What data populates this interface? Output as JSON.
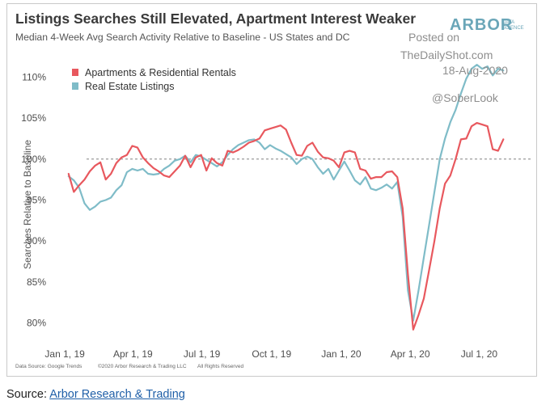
{
  "chart_data": {
    "type": "line",
    "title": "Listings Searches Still Elevated, Apartment Interest Weaker",
    "subtitle": "Median 4-Week Avg Search Activity Relative to Baseline - US States and DC",
    "ylabel": "Searches Relative to Baseline",
    "xlabel": "",
    "ylim": [
      78,
      112
    ],
    "yticks": [
      80,
      85,
      90,
      95,
      100,
      105,
      110
    ],
    "ytick_labels": [
      "80%",
      "85%",
      "90%",
      "95%",
      "100%",
      "105%",
      "110%"
    ],
    "xlim": [
      "2018-12-18",
      "2020-09-08"
    ],
    "xticks": [
      "2019-01-01",
      "2019-04-01",
      "2019-07-01",
      "2019-10-01",
      "2020-01-01",
      "2020-04-01",
      "2020-07-01"
    ],
    "xtick_labels": [
      "Jan 1, 19",
      "Apr 1, 19",
      "Jul 1, 19",
      "Oct 1, 19",
      "Jan 1, 20",
      "Apr 1, 20",
      "Jul 1, 20"
    ],
    "baseline": 100,
    "legend_position": "top-left",
    "series": [
      {
        "name": "Apartments & Residential Rentals",
        "color": "#e8585e",
        "points": [
          [
            "2019-01-06",
            98.2
          ],
          [
            "2019-01-13",
            96.0
          ],
          [
            "2019-01-20",
            96.8
          ],
          [
            "2019-01-27",
            97.5
          ],
          [
            "2019-02-03",
            98.5
          ],
          [
            "2019-02-10",
            99.2
          ],
          [
            "2019-02-17",
            99.6
          ],
          [
            "2019-02-24",
            97.5
          ],
          [
            "2019-03-03",
            98.2
          ],
          [
            "2019-03-10",
            99.5
          ],
          [
            "2019-03-17",
            100.2
          ],
          [
            "2019-03-24",
            100.5
          ],
          [
            "2019-03-31",
            101.6
          ],
          [
            "2019-04-07",
            101.4
          ],
          [
            "2019-04-14",
            100.2
          ],
          [
            "2019-04-21",
            99.5
          ],
          [
            "2019-04-28",
            98.9
          ],
          [
            "2019-05-05",
            98.5
          ],
          [
            "2019-05-12",
            98.0
          ],
          [
            "2019-05-19",
            97.8
          ],
          [
            "2019-05-26",
            98.5
          ],
          [
            "2019-06-02",
            99.2
          ],
          [
            "2019-06-09",
            100.4
          ],
          [
            "2019-06-16",
            99.0
          ],
          [
            "2019-06-23",
            100.2
          ],
          [
            "2019-06-30",
            100.5
          ],
          [
            "2019-07-07",
            98.6
          ],
          [
            "2019-07-14",
            100.1
          ],
          [
            "2019-07-21",
            99.5
          ],
          [
            "2019-07-28",
            99.2
          ],
          [
            "2019-08-04",
            101.0
          ],
          [
            "2019-08-11",
            100.8
          ],
          [
            "2019-08-18",
            101.1
          ],
          [
            "2019-08-25",
            101.5
          ],
          [
            "2019-09-01",
            102.0
          ],
          [
            "2019-09-08",
            102.2
          ],
          [
            "2019-09-15",
            102.5
          ],
          [
            "2019-09-22",
            103.5
          ],
          [
            "2019-09-29",
            103.7
          ],
          [
            "2019-10-06",
            103.9
          ],
          [
            "2019-10-13",
            104.1
          ],
          [
            "2019-10-20",
            103.6
          ],
          [
            "2019-10-27",
            102.0
          ],
          [
            "2019-11-03",
            100.5
          ],
          [
            "2019-11-10",
            100.4
          ],
          [
            "2019-11-17",
            101.6
          ],
          [
            "2019-11-24",
            102.0
          ],
          [
            "2019-12-01",
            100.9
          ],
          [
            "2019-12-08",
            100.2
          ],
          [
            "2019-12-15",
            100.1
          ],
          [
            "2019-12-22",
            99.8
          ],
          [
            "2019-12-29",
            99.0
          ],
          [
            "2020-01-05",
            100.8
          ],
          [
            "2020-01-12",
            101.0
          ],
          [
            "2020-01-19",
            100.8
          ],
          [
            "2020-01-26",
            98.8
          ],
          [
            "2020-02-02",
            98.6
          ],
          [
            "2020-02-09",
            97.6
          ],
          [
            "2020-02-16",
            97.8
          ],
          [
            "2020-02-23",
            97.8
          ],
          [
            "2020-03-01",
            98.4
          ],
          [
            "2020-03-08",
            98.5
          ],
          [
            "2020-03-15",
            97.8
          ],
          [
            "2020-03-22",
            94.0
          ],
          [
            "2020-03-29",
            86.0
          ],
          [
            "2020-04-05",
            79.2
          ],
          [
            "2020-04-12",
            81.0
          ],
          [
            "2020-04-19",
            83.0
          ],
          [
            "2020-04-26",
            86.5
          ],
          [
            "2020-05-03",
            90.0
          ],
          [
            "2020-05-10",
            94.0
          ],
          [
            "2020-05-17",
            97.0
          ],
          [
            "2020-05-24",
            98.0
          ],
          [
            "2020-05-31",
            100.0
          ],
          [
            "2020-06-07",
            102.4
          ],
          [
            "2020-06-14",
            102.5
          ],
          [
            "2020-06-21",
            104.0
          ],
          [
            "2020-06-28",
            104.4
          ],
          [
            "2020-07-05",
            104.2
          ],
          [
            "2020-07-12",
            104.0
          ],
          [
            "2020-07-19",
            101.2
          ],
          [
            "2020-07-26",
            101.0
          ],
          [
            "2020-08-02",
            102.4
          ]
        ]
      },
      {
        "name": "Real Estate Listings",
        "color": "#7fbcc8",
        "points": [
          [
            "2019-01-06",
            97.9
          ],
          [
            "2019-01-13",
            97.4
          ],
          [
            "2019-01-20",
            96.5
          ],
          [
            "2019-01-27",
            94.6
          ],
          [
            "2019-02-03",
            93.8
          ],
          [
            "2019-02-10",
            94.2
          ],
          [
            "2019-02-17",
            94.8
          ],
          [
            "2019-02-24",
            95.0
          ],
          [
            "2019-03-03",
            95.3
          ],
          [
            "2019-03-10",
            96.2
          ],
          [
            "2019-03-17",
            96.8
          ],
          [
            "2019-03-24",
            98.4
          ],
          [
            "2019-03-31",
            98.8
          ],
          [
            "2019-04-07",
            98.6
          ],
          [
            "2019-04-14",
            98.8
          ],
          [
            "2019-04-21",
            98.2
          ],
          [
            "2019-04-28",
            98.1
          ],
          [
            "2019-05-05",
            98.2
          ],
          [
            "2019-05-12",
            98.8
          ],
          [
            "2019-05-19",
            99.2
          ],
          [
            "2019-05-26",
            99.8
          ],
          [
            "2019-06-02",
            100.0
          ],
          [
            "2019-06-09",
            100.4
          ],
          [
            "2019-06-16",
            99.6
          ],
          [
            "2019-06-23",
            100.5
          ],
          [
            "2019-06-30",
            100.3
          ],
          [
            "2019-07-07",
            99.9
          ],
          [
            "2019-07-14",
            99.5
          ],
          [
            "2019-07-21",
            99.1
          ],
          [
            "2019-07-28",
            99.6
          ],
          [
            "2019-08-04",
            100.5
          ],
          [
            "2019-08-11",
            101.2
          ],
          [
            "2019-08-18",
            101.7
          ],
          [
            "2019-08-25",
            102.0
          ],
          [
            "2019-09-01",
            102.3
          ],
          [
            "2019-09-08",
            102.4
          ],
          [
            "2019-09-15",
            102.0
          ],
          [
            "2019-09-22",
            101.2
          ],
          [
            "2019-09-29",
            101.7
          ],
          [
            "2019-10-06",
            101.3
          ],
          [
            "2019-10-13",
            101.0
          ],
          [
            "2019-10-20",
            100.6
          ],
          [
            "2019-10-27",
            100.2
          ],
          [
            "2019-11-03",
            99.4
          ],
          [
            "2019-11-10",
            100.0
          ],
          [
            "2019-11-17",
            100.3
          ],
          [
            "2019-11-24",
            100.0
          ],
          [
            "2019-12-01",
            99.0
          ],
          [
            "2019-12-08",
            98.2
          ],
          [
            "2019-12-15",
            98.8
          ],
          [
            "2019-12-22",
            97.5
          ],
          [
            "2019-12-29",
            98.6
          ],
          [
            "2020-01-05",
            99.7
          ],
          [
            "2020-01-12",
            98.6
          ],
          [
            "2020-01-19",
            97.4
          ],
          [
            "2020-01-26",
            96.9
          ],
          [
            "2020-02-02",
            97.8
          ],
          [
            "2020-02-09",
            96.4
          ],
          [
            "2020-02-16",
            96.2
          ],
          [
            "2020-02-23",
            96.5
          ],
          [
            "2020-03-01",
            96.9
          ],
          [
            "2020-03-08",
            96.4
          ],
          [
            "2020-03-15",
            97.2
          ],
          [
            "2020-03-22",
            93.0
          ],
          [
            "2020-03-29",
            84.0
          ],
          [
            "2020-04-05",
            80.3
          ],
          [
            "2020-04-12",
            84.0
          ],
          [
            "2020-04-19",
            88.0
          ],
          [
            "2020-04-26",
            92.0
          ],
          [
            "2020-05-03",
            96.0
          ],
          [
            "2020-05-10",
            100.0
          ],
          [
            "2020-05-17",
            102.5
          ],
          [
            "2020-05-24",
            104.5
          ],
          [
            "2020-05-31",
            106.0
          ],
          [
            "2020-06-07",
            108.0
          ],
          [
            "2020-06-14",
            109.8
          ],
          [
            "2020-06-21",
            111.0
          ],
          [
            "2020-06-28",
            111.5
          ],
          [
            "2020-07-05",
            111.0
          ],
          [
            "2020-07-12",
            111.3
          ],
          [
            "2020-07-19",
            110.2
          ],
          [
            "2020-07-26",
            111.0
          ],
          [
            "2020-08-02",
            110.8
          ]
        ]
      }
    ]
  },
  "credits": {
    "data_source": "Data Source: Google Trends",
    "copyright": "©2020 Arbor Research & Trading LLC",
    "rights": "All Rights Reserved"
  },
  "brand": {
    "main": "ARBOR",
    "sub_top": "DATA",
    "sub_bottom": "SCIENCE"
  },
  "watermark": {
    "line1": "Posted on",
    "line2": "TheDailyShot.com",
    "line3": "18-Aug-2020",
    "line4": "@SoberLook"
  },
  "footer": {
    "prefix": "Source: ",
    "link_text": "Arbor Research & Trading"
  }
}
